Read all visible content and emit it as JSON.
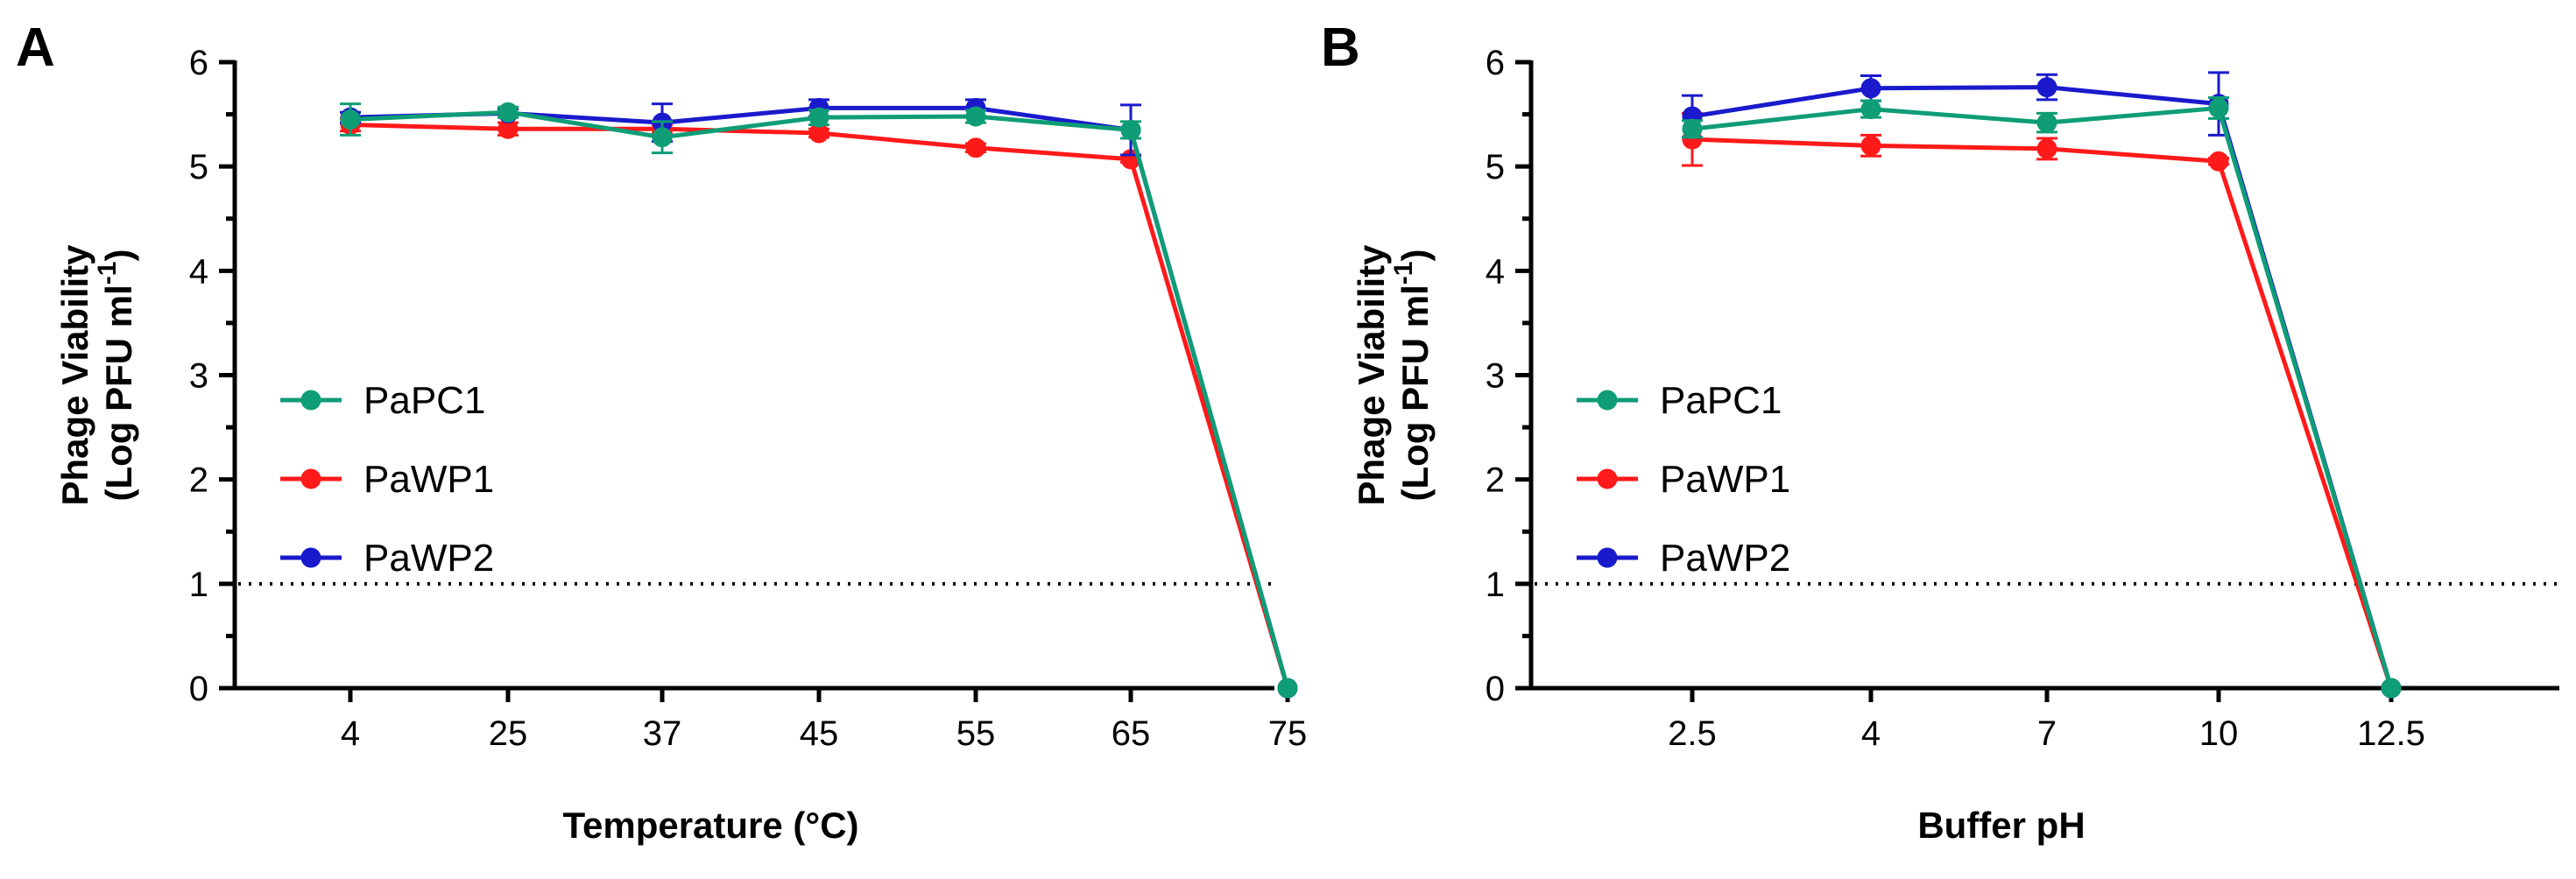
{
  "chart_data": [
    {
      "type": "line",
      "panel_label": "A",
      "xlabel": "Temperature (°C)",
      "ylabel_line1": "Phage Viability",
      "ylabel_line2_prefix": "(Log PFU ml",
      "ylabel_superscript": "-1",
      "ylabel_line2_suffix": ")",
      "categories": [
        "4",
        "25",
        "37",
        "45",
        "55",
        "65",
        "75"
      ],
      "ylim": [
        0,
        6
      ],
      "yticks": [
        "0",
        "1",
        "2",
        "3",
        "4",
        "5",
        "6"
      ],
      "detection_limit": 1,
      "legend_position": "left",
      "series": [
        {
          "name": "PaPC1",
          "color": "#0f9d76",
          "values": [
            5.45,
            5.52,
            5.28,
            5.47,
            5.48,
            5.35,
            0
          ],
          "errors": [
            0.15,
            0.05,
            0.15,
            0.07,
            0.06,
            0.08,
            0
          ]
        },
        {
          "name": "PaWP1",
          "color": "#ff1a1a",
          "values": [
            5.4,
            5.36,
            5.36,
            5.32,
            5.18,
            5.07,
            0
          ],
          "errors": [
            0.06,
            0.06,
            0.04,
            0.04,
            0.04,
            0.03,
            0
          ]
        },
        {
          "name": "PaWP2",
          "color": "#1a1acc",
          "values": [
            5.47,
            5.51,
            5.42,
            5.56,
            5.56,
            5.35,
            0
          ],
          "errors": [
            0.05,
            0.04,
            0.18,
            0.08,
            0.08,
            0.24,
            0
          ]
        }
      ]
    },
    {
      "type": "line",
      "panel_label": "B",
      "xlabel": "Buffer pH",
      "ylabel_line1": "Phage Viability",
      "ylabel_line2_prefix": "(Log PFU ml",
      "ylabel_superscript": "-1",
      "ylabel_line2_suffix": ")",
      "categories": [
        "2.5",
        "4",
        "7",
        "10",
        "12.5"
      ],
      "ylim": [
        0,
        6
      ],
      "yticks": [
        "0",
        "1",
        "2",
        "3",
        "4",
        "5",
        "6"
      ],
      "detection_limit": 1,
      "legend_position": "left",
      "series": [
        {
          "name": "PaPC1",
          "color": "#0f9d76",
          "values": [
            5.36,
            5.55,
            5.42,
            5.56,
            0
          ],
          "errors": [
            0.08,
            0.08,
            0.09,
            0.1,
            0
          ]
        },
        {
          "name": "PaWP1",
          "color": "#ff1a1a",
          "values": [
            5.26,
            5.2,
            5.17,
            5.05,
            0
          ],
          "errors": [
            0.25,
            0.1,
            0.1,
            0.03,
            0
          ]
        },
        {
          "name": "PaWP2",
          "color": "#1a1acc",
          "values": [
            5.48,
            5.75,
            5.76,
            5.6,
            0
          ],
          "errors": [
            0.2,
            0.12,
            0.12,
            0.3,
            0
          ]
        }
      ]
    }
  ]
}
